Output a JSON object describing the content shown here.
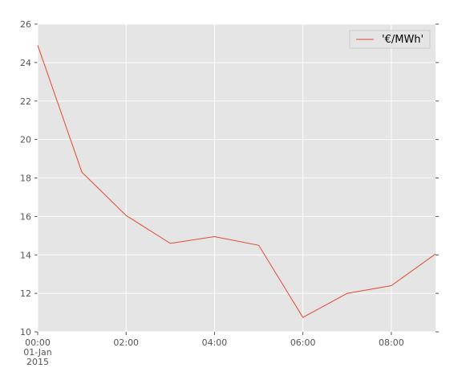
{
  "chart_data": {
    "type": "line",
    "x": [
      "2015-01-01T00:00",
      "2015-01-01T01:00",
      "2015-01-01T02:00",
      "2015-01-01T03:00",
      "2015-01-01T04:00",
      "2015-01-01T05:00",
      "2015-01-01T06:00",
      "2015-01-01T07:00",
      "2015-01-01T08:00",
      "2015-01-01T09:00"
    ],
    "series": [
      {
        "name": "'€/MWh'",
        "color": "#e24a33",
        "values": [
          24.9,
          18.3,
          16.05,
          14.6,
          14.95,
          14.5,
          10.75,
          12.0,
          12.4,
          14.05
        ]
      }
    ],
    "xlim": [
      "2015-01-01T00:00",
      "2015-01-01T09:00"
    ],
    "xticks": [
      {
        "value": "2015-01-01T00:00",
        "label": "00:00"
      },
      {
        "value": "2015-01-01T02:00",
        "label": "02:00"
      },
      {
        "value": "2015-01-01T04:00",
        "label": "04:00"
      },
      {
        "value": "2015-01-01T06:00",
        "label": "06:00"
      },
      {
        "value": "2015-01-01T08:00",
        "label": "08:00"
      }
    ],
    "xtick_sublabels": [
      "01-Jan",
      "2015"
    ],
    "ylim": [
      10,
      26
    ],
    "yticks": [
      10,
      12,
      14,
      16,
      18,
      20,
      22,
      24,
      26
    ],
    "grid": true,
    "legend": "upper right",
    "background": "#e5e5e5"
  }
}
